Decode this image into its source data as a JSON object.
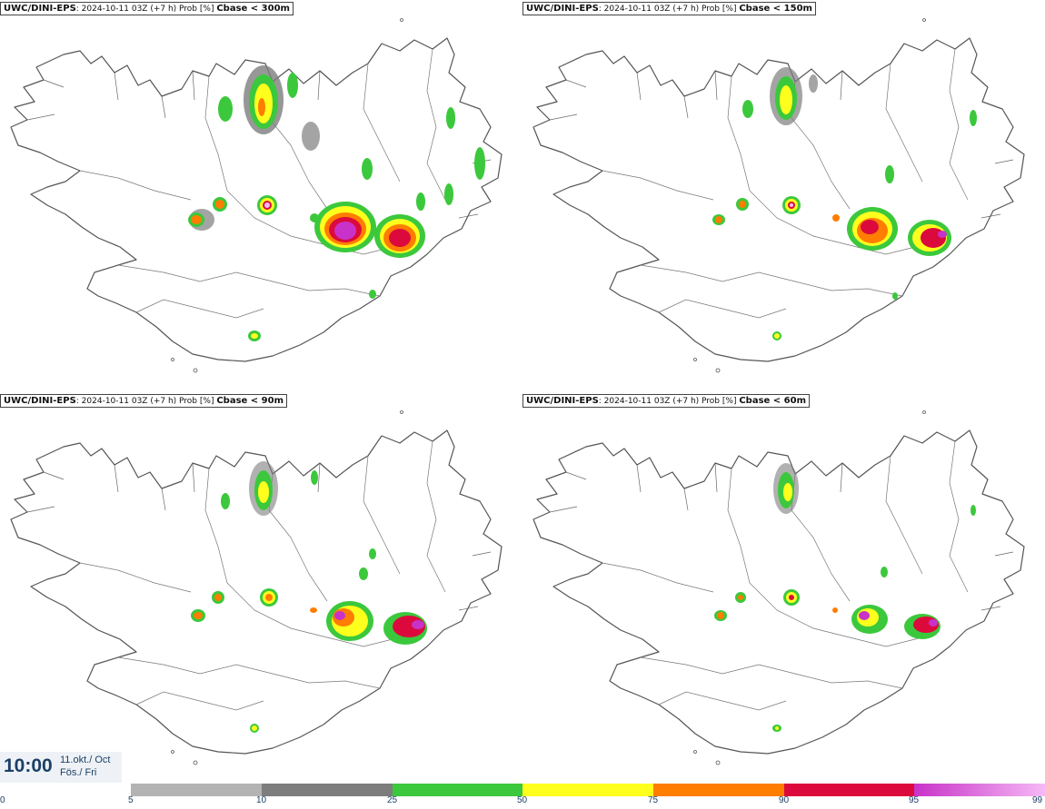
{
  "panels": [
    {
      "model": "UWC/DINI-EPS",
      "info": "2024-10-11 03Z (+7 h) Prob [%]",
      "threshold": "Cbase < 300m"
    },
    {
      "model": "UWC/DINI-EPS",
      "info": "2024-10-11 03Z (+7 h) Prob [%]",
      "threshold": "Cbase < 150m"
    },
    {
      "model": "UWC/DINI-EPS",
      "info": "2024-10-11 03Z (+7 h) Prob [%]",
      "threshold": "Cbase < 90m"
    },
    {
      "model": "UWC/DINI-EPS",
      "info": "2024-10-11 03Z (+7 h) Prob [%]",
      "threshold": "Cbase < 60m"
    }
  ],
  "time": {
    "clock": "10:00",
    "date_line1": "11.okt./ Oct",
    "date_line2": "Fös./ Fri"
  },
  "legend": {
    "ticks": [
      "0",
      "5",
      "10",
      "25",
      "50",
      "75",
      "90",
      "95",
      "99"
    ],
    "colors": [
      "#b3b3b3",
      "#7d7d7d",
      "#3cc83c",
      "#ffff1e",
      "#ff7d00",
      "#dc0a3c",
      "#c832c8",
      "#f5b9f5"
    ]
  },
  "colors": {
    "land_outline": "#555555",
    "grey_light": "#b3b3b3",
    "grey_dark": "#7d7d7d",
    "green": "#3cc83c",
    "yellow": "#ffff1e",
    "orange": "#ff7d00",
    "red": "#dc0a3c",
    "magenta": "#c832c8",
    "pink": "#f5b9f5"
  }
}
